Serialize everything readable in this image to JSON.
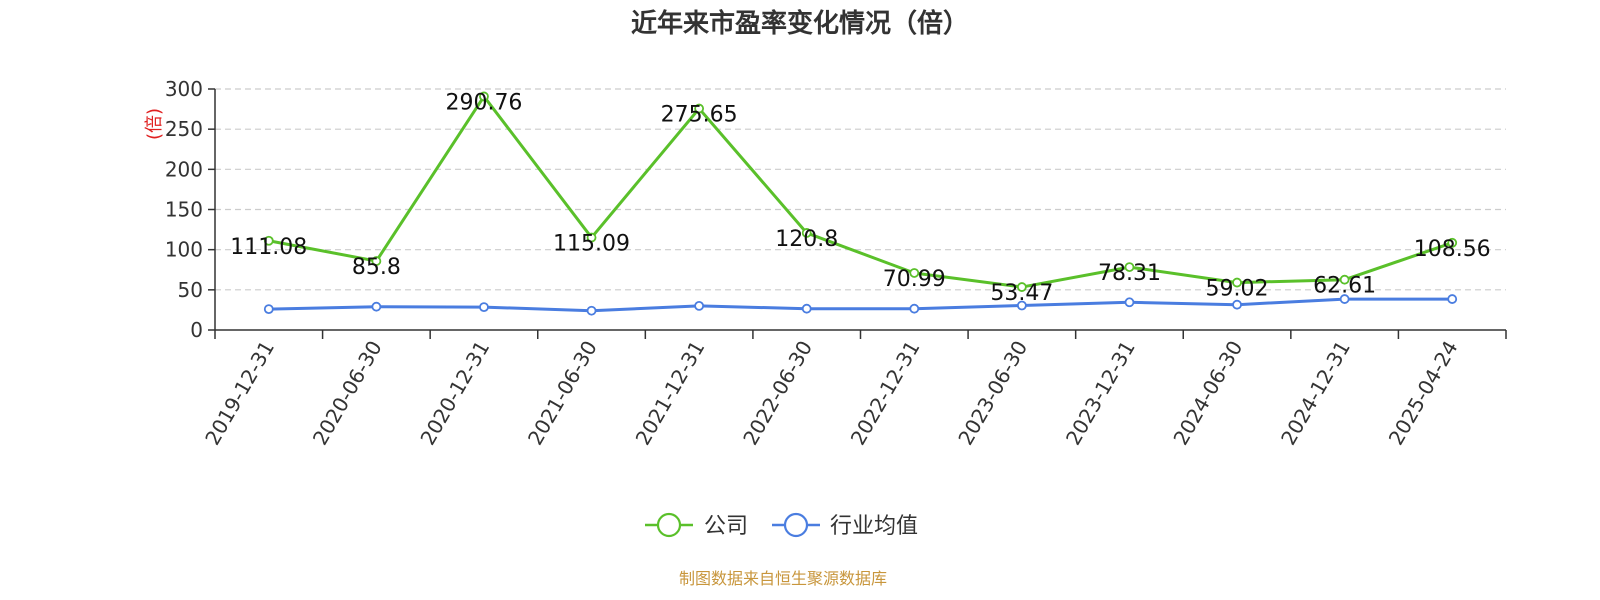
{
  "chart_data": {
    "type": "line",
    "title": "近年来市盈率变化情况（倍）",
    "ylabel": "(倍)",
    "categories": [
      "2019-12-31",
      "2020-06-30",
      "2020-12-31",
      "2021-06-30",
      "2021-12-31",
      "2022-06-30",
      "2022-12-31",
      "2023-06-30",
      "2023-12-31",
      "2024-06-30",
      "2024-12-31",
      "2025-04-24"
    ],
    "series": [
      {
        "name": "公司",
        "color": "#5ac02a",
        "values": [
          111.08,
          85.8,
          290.76,
          115.09,
          275.65,
          120.8,
          70.99,
          53.47,
          78.31,
          59.02,
          62.61,
          108.56
        ],
        "labels": [
          "111.08",
          "85.8",
          "290.76",
          "115.09",
          "275.65",
          "120.8",
          "70.99",
          "53.47",
          "78.31",
          "59.02",
          "62.61",
          "108.56"
        ]
      },
      {
        "name": "行业均值",
        "color": "#4a7de0",
        "values": [
          26,
          29,
          28.5,
          24,
          30,
          26.5,
          26.5,
          30.5,
          34.5,
          31.5,
          38.5,
          38.5
        ]
      }
    ],
    "ylim": [
      0,
      300
    ],
    "yticks": [
      "0",
      "50",
      "100",
      "150",
      "200",
      "250",
      "300"
    ],
    "grid": true,
    "legend_position": "bottom-center",
    "ylabel_color": "#e02020"
  },
  "source": {
    "text": "制图数据来自恒生聚源数据库",
    "color": "#c8963c"
  }
}
